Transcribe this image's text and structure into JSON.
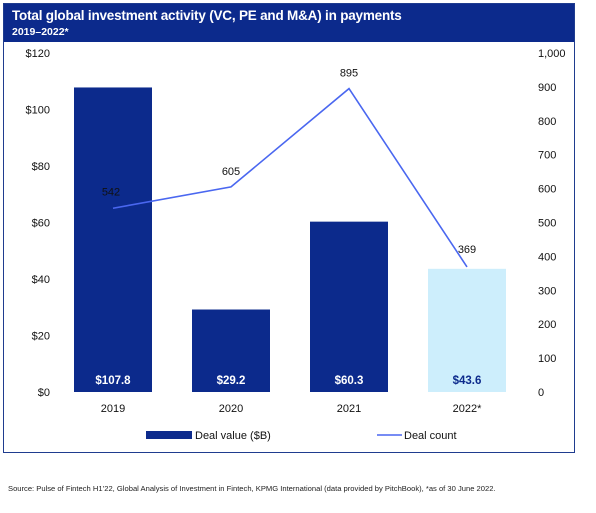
{
  "header": {
    "title": "Total global investment activity (VC, PE and M&A) in payments",
    "subtitle": "2019–2022*"
  },
  "chart_data": {
    "type": "bar",
    "categories": [
      "2019",
      "2020",
      "2021",
      "2022*"
    ],
    "series": [
      {
        "name": "Deal value ($B)",
        "type": "bar",
        "axis": "left",
        "values": [
          107.8,
          29.2,
          60.3,
          43.6
        ],
        "labels": [
          "$107.8",
          "$29.2",
          "$60.3",
          "$43.6"
        ],
        "colors": [
          "#0c2a8c",
          "#0c2a8c",
          "#0c2a8c",
          "#cdeefc"
        ]
      },
      {
        "name": "Deal count",
        "type": "line",
        "axis": "right",
        "values": [
          542,
          605,
          895,
          369
        ],
        "labels": [
          "542",
          "605",
          "895",
          "369"
        ],
        "color": "#4a67f0"
      }
    ],
    "y_left": {
      "ylim": [
        0,
        120
      ],
      "ticks": [
        0,
        20,
        40,
        60,
        80,
        100,
        120
      ],
      "tick_labels": [
        "$0",
        "$20",
        "$40",
        "$60",
        "$80",
        "$100",
        "$120"
      ]
    },
    "y_right": {
      "ylim": [
        0,
        1000
      ],
      "ticks": [
        0,
        100,
        200,
        300,
        400,
        500,
        600,
        700,
        800,
        900,
        1000
      ],
      "tick_labels": [
        "0",
        "100",
        "200",
        "300",
        "400",
        "500",
        "600",
        "700",
        "800",
        "900",
        "1,000"
      ]
    },
    "legend": {
      "position": "bottom",
      "items": [
        "Deal value ($B)",
        "Deal count"
      ]
    },
    "grid": false
  },
  "footer": {
    "source": "Source: Pulse of Fintech H1’22, Global Analysis of Investment in Fintech, KPMG International (data provided by PitchBook), *as of 30 June 2022."
  }
}
